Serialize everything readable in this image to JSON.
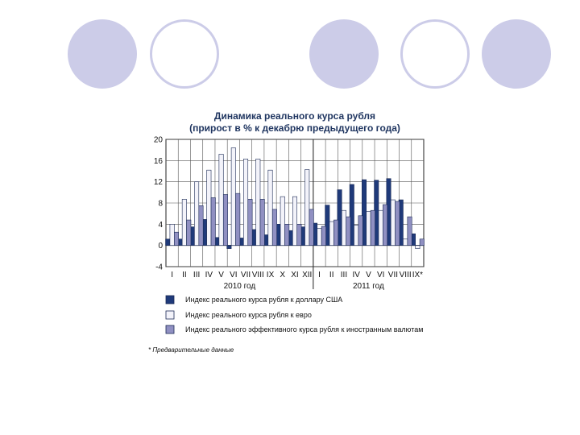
{
  "decor": {
    "circles": [
      {
        "style": "filled"
      },
      {
        "style": "outline"
      },
      {
        "style": "filled"
      },
      {
        "style": "outline"
      },
      {
        "style": "filled"
      }
    ]
  },
  "chart_data": {
    "type": "bar",
    "title": "Динамика реального курса рубля",
    "subtitle": "(прирост в % к декабрю предыдущего года)",
    "ylim": [
      -4,
      20
    ],
    "yticks": [
      20,
      16,
      12,
      8,
      4,
      0,
      -4
    ],
    "categories": [
      "I",
      "II",
      "III",
      "IV",
      "V",
      "VI",
      "VII",
      "VIII",
      "IX",
      "X",
      "XI",
      "XII",
      "I",
      "II",
      "III",
      "IV",
      "V",
      "VI",
      "VII",
      "VIII",
      "IX*"
    ],
    "year_labels": [
      "2010 год",
      "2011 год"
    ],
    "grid": true,
    "legend_position": "bottom",
    "series": [
      {
        "name": "Индекс реального курса рубля к доллару США",
        "color": "#1f3a7a",
        "values": [
          1.2,
          1.2,
          3.5,
          4.9,
          1.5,
          -0.6,
          1.4,
          3.0,
          2.0,
          4.0,
          2.8,
          3.5,
          4.2,
          7.6,
          10.5,
          11.5,
          12.4,
          12.3,
          12.6,
          8.6,
          2.2
        ]
      },
      {
        "name": "Индекс реального курса рубля к евро",
        "color": "#f3f3fa",
        "values": [
          4.0,
          8.7,
          12.0,
          14.2,
          17.2,
          18.4,
          16.3,
          16.3,
          14.2,
          9.2,
          9.2,
          14.3,
          3.2,
          4.5,
          6.6,
          3.8,
          6.4,
          6.6,
          8.6,
          1.2,
          -0.6
        ]
      },
      {
        "name": "Индекс реального эффективного курса рубля к иностранным валютам",
        "color": "#9090c2",
        "values": [
          2.5,
          4.8,
          7.5,
          9.0,
          9.6,
          9.8,
          8.7,
          8.7,
          6.8,
          4.0,
          4.0,
          6.8,
          3.6,
          4.8,
          5.4,
          5.6,
          6.6,
          7.7,
          8.3,
          5.4,
          1.2
        ]
      }
    ],
    "footnote": "* Предварительные данные"
  }
}
